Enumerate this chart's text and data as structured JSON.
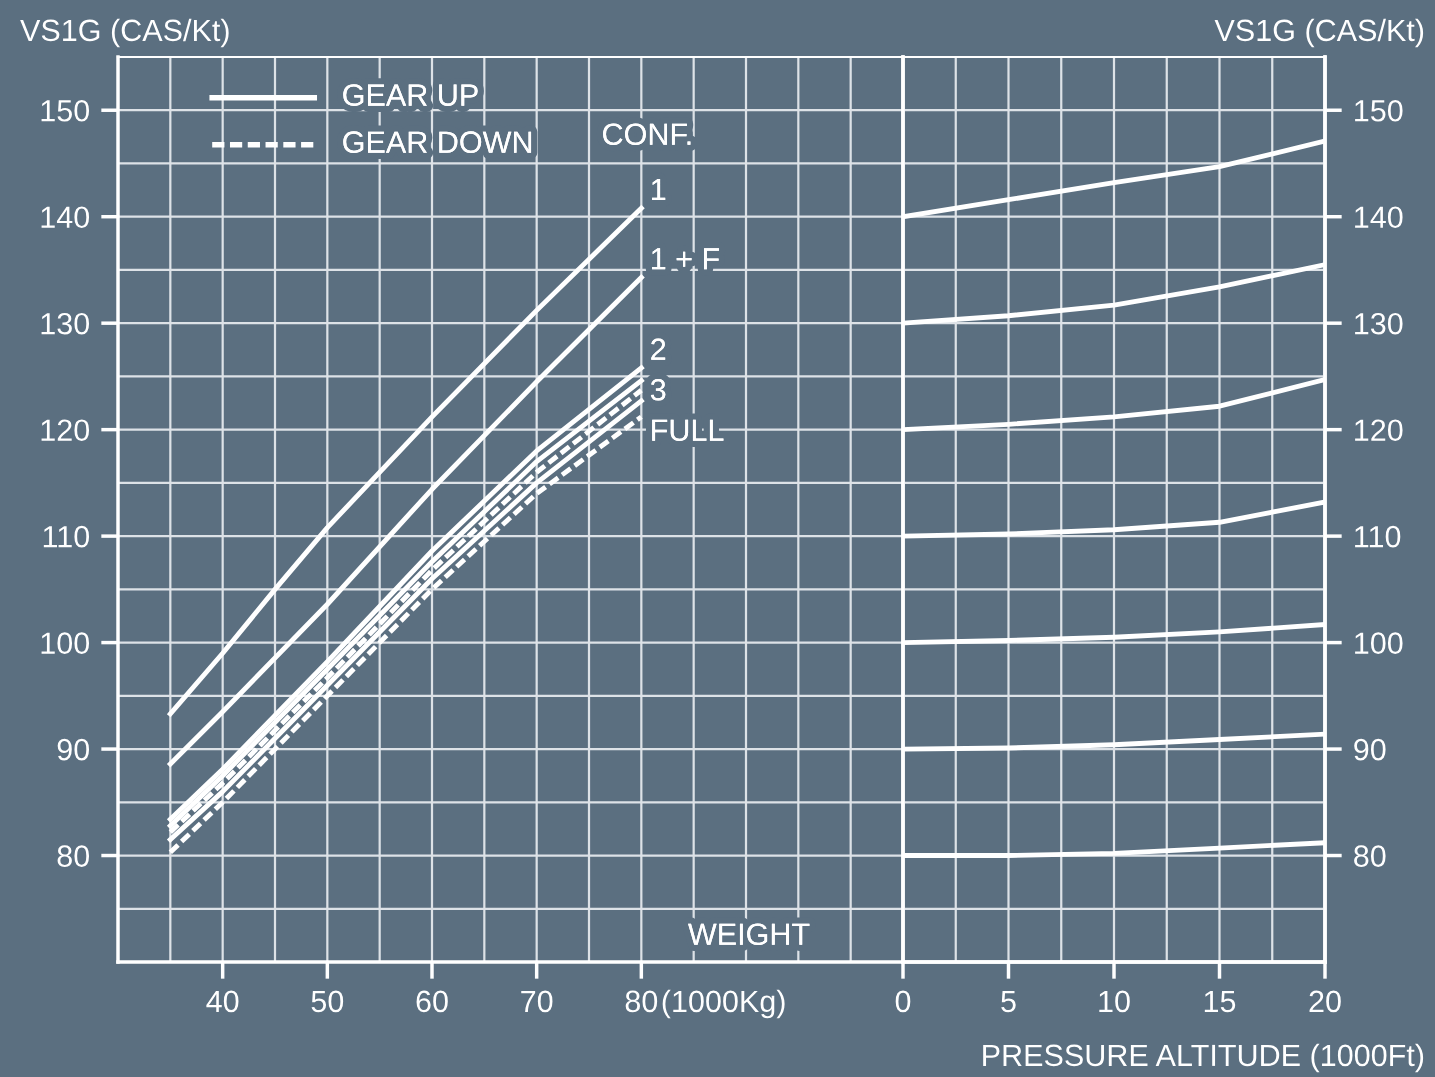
{
  "chart_data": [
    {
      "type": "line",
      "ylabel": "VS1G (CAS/Kt)",
      "xlabel": "(1000Kg)",
      "annotations": [
        "GEAR UP",
        "GEAR DOWN",
        "CONF.",
        "WEIGHT"
      ],
      "grid": true,
      "xlim": [
        30,
        105
      ],
      "xticks": [
        {
          "value": 35,
          "label": null
        },
        40,
        {
          "value": 45,
          "label": null
        },
        50,
        {
          "value": 55,
          "label": null
        },
        60,
        {
          "value": 65,
          "label": null
        },
        70,
        {
          "value": 75,
          "label": null
        },
        80,
        {
          "value": 85,
          "label": null
        },
        {
          "value": 90,
          "label": null
        },
        {
          "value": 95,
          "label": null
        },
        {
          "value": 100,
          "label": null
        },
        {
          "value": 105,
          "label": null
        }
      ],
      "ylim": [
        70,
        155
      ],
      "yticks": [
        {
          "value": 75,
          "label": null
        },
        80,
        {
          "value": 85,
          "label": null
        },
        90,
        {
          "value": 95,
          "label": null
        },
        100,
        {
          "value": 105,
          "label": null
        },
        110,
        {
          "value": 115,
          "label": null
        },
        120,
        {
          "value": 125,
          "label": null
        },
        130,
        {
          "value": 135,
          "label": null
        },
        140,
        {
          "value": 145,
          "label": null
        },
        150,
        {
          "value": 155,
          "label": null
        }
      ],
      "series": [
        {
          "name": "1",
          "color": "#ffffff",
          "line_style": "solid",
          "x": [
            35,
            40,
            45,
            50,
            60,
            70,
            80
          ],
          "values": [
            93.3,
            99,
            105,
            110.8,
            121.2,
            131.2,
            140.8
          ]
        },
        {
          "name": "1 + F",
          "color": "#ffffff",
          "line_style": "solid",
          "x": [
            35,
            40,
            50,
            60,
            70,
            80
          ],
          "values": [
            88.6,
            93.5,
            103.6,
            114.4,
            124.5,
            134.3
          ]
        },
        {
          "name": "2",
          "color": "#ffffff",
          "line_style": "solid",
          "x": [
            35,
            40,
            50,
            60,
            70,
            80
          ],
          "values": [
            83.4,
            88.1,
            98.2,
            108.6,
            118,
            125.8
          ]
        },
        {
          "name": "3",
          "color": "#ffffff",
          "line_style": "solid",
          "x": [
            35,
            40,
            50,
            60,
            70,
            80
          ],
          "values": [
            82.8,
            87.5,
            97.5,
            107.6,
            117,
            124.6
          ]
        },
        {
          "color": "#ffffff",
          "line_style": "dashed",
          "x": [
            35,
            40,
            50,
            60,
            70,
            80
          ],
          "values": [
            82.2,
            86.8,
            96.7,
            106.8,
            116,
            123.7
          ]
        },
        {
          "name": "FULL",
          "color": "#ffffff",
          "line_style": "solid",
          "x": [
            35,
            40,
            50,
            60,
            70,
            80
          ],
          "values": [
            81.5,
            86,
            96,
            106,
            115,
            122.7
          ]
        },
        {
          "color": "#ffffff",
          "line_style": "dashed",
          "x": [
            35,
            40,
            50,
            60,
            70,
            80
          ],
          "values": [
            80.3,
            85,
            95,
            105,
            114,
            121.2
          ]
        }
      ]
    },
    {
      "type": "line",
      "y2label": "VS1G (CAS/Kt)",
      "xlabel": "PRESSURE ALTITUDE (1000Ft)",
      "grid": true,
      "xlim": [
        0,
        20
      ],
      "xticks": [
        0,
        {
          "value": 2.5,
          "label": null
        },
        5,
        {
          "value": 7.5,
          "label": null
        },
        10,
        {
          "value": 12.5,
          "label": null
        },
        15,
        {
          "value": 17.5,
          "label": null
        },
        20
      ],
      "y2lim": [
        70,
        155
      ],
      "y2ticks": [
        {
          "value": 75,
          "label": null
        },
        80,
        {
          "value": 85,
          "label": null
        },
        90,
        {
          "value": 95,
          "label": null
        },
        100,
        {
          "value": 105,
          "label": null
        },
        110,
        {
          "value": 115,
          "label": null
        },
        120,
        {
          "value": 125,
          "label": null
        },
        130,
        {
          "value": 135,
          "label": null
        },
        140,
        {
          "value": 145,
          "label": null
        },
        150,
        {
          "value": 155,
          "label": null
        }
      ],
      "series": [
        {
          "axis": "y2",
          "color": "#ffffff",
          "x": [
            0,
            5,
            10,
            15,
            20
          ],
          "values": [
            140,
            141.6,
            143.2,
            144.7,
            147.1
          ]
        },
        {
          "axis": "y2",
          "color": "#ffffff",
          "x": [
            0,
            5,
            10,
            15,
            20
          ],
          "values": [
            130,
            130.7,
            131.7,
            133.4,
            135.5
          ]
        },
        {
          "axis": "y2",
          "color": "#ffffff",
          "x": [
            0,
            5,
            10,
            15,
            20
          ],
          "values": [
            120,
            120.5,
            121.2,
            122.2,
            124.7
          ]
        },
        {
          "axis": "y2",
          "color": "#ffffff",
          "x": [
            0,
            5,
            10,
            15,
            20
          ],
          "values": [
            110,
            110.2,
            110.6,
            111.3,
            113.2
          ]
        },
        {
          "axis": "y2",
          "color": "#ffffff",
          "x": [
            0,
            5,
            10,
            15,
            20
          ],
          "values": [
            100,
            100.2,
            100.5,
            101,
            101.7
          ]
        },
        {
          "axis": "y2",
          "color": "#ffffff",
          "x": [
            0,
            5,
            10,
            15,
            20
          ],
          "values": [
            90,
            90.1,
            90.4,
            90.9,
            91.4
          ]
        },
        {
          "axis": "y2",
          "color": "#ffffff",
          "x": [
            0,
            5,
            10,
            15,
            20
          ],
          "values": [
            80,
            80,
            80.2,
            80.7,
            81.2
          ]
        }
      ]
    }
  ]
}
